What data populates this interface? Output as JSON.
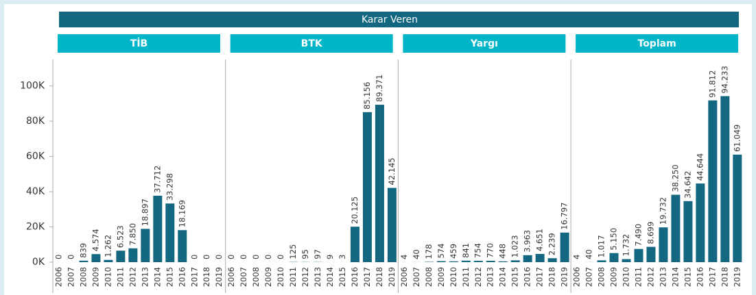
{
  "header": "Karar Veren",
  "chart_data": [
    {
      "type": "bar",
      "title": "TİB",
      "color": "#136780",
      "categories": [
        "2006",
        "2007",
        "2008",
        "2009",
        "2010",
        "2011",
        "2012",
        "2013",
        "2014",
        "2015",
        "2016",
        "2017",
        "2018",
        "2019"
      ],
      "values": [
        0,
        0,
        839,
        4574,
        1262,
        6523,
        7850,
        18897,
        37712,
        33298,
        18169,
        0,
        0,
        0
      ],
      "value_labels": [
        "0",
        "0",
        "839",
        "4.574",
        "1.262",
        "6.523",
        "7.850",
        "18.897",
        "37.712",
        "33.298",
        "18.169",
        "0",
        "0",
        "0"
      ],
      "ylim": [
        0,
        115000
      ],
      "yticks": [
        {
          "value": 0,
          "label": "0K"
        },
        {
          "value": 20000,
          "label": "20K"
        },
        {
          "value": 40000,
          "label": "40K"
        },
        {
          "value": 60000,
          "label": "60K"
        },
        {
          "value": 80000,
          "label": "80K"
        },
        {
          "value": 100000,
          "label": "100K"
        }
      ]
    },
    {
      "type": "bar",
      "title": "BTK",
      "color": "#136780",
      "categories": [
        "2006",
        "2007",
        "2008",
        "2009",
        "2010",
        "2011",
        "2012",
        "2013",
        "2014",
        "2015",
        "2016",
        "2017",
        "2018",
        "2019"
      ],
      "values": [
        0,
        0,
        0,
        0,
        0,
        125,
        95,
        97,
        9,
        3,
        20125,
        85156,
        89371,
        42145
      ],
      "value_labels": [
        "0",
        "0",
        "0",
        "0",
        "0",
        "125",
        "95",
        "97",
        "9",
        "3",
        "20.125",
        "85.156",
        "89.371",
        "42.145"
      ],
      "ylim": [
        0,
        115000
      ]
    },
    {
      "type": "bar",
      "title": "Yargı",
      "color": "#136780",
      "categories": [
        "2006",
        "2007",
        "2008",
        "2009",
        "2010",
        "2011",
        "2012",
        "2013",
        "2014",
        "2015",
        "2016",
        "2017",
        "2018",
        "2019"
      ],
      "values": [
        4,
        40,
        178,
        574,
        459,
        841,
        754,
        770,
        448,
        1023,
        3963,
        4651,
        2239,
        16797
      ],
      "value_labels": [
        "4",
        "40",
        "178",
        "574",
        "459",
        "841",
        "754",
        "770",
        "448",
        "1.023",
        "3.963",
        "4.651",
        "2.239",
        "16.797"
      ],
      "ylim": [
        0,
        115000
      ]
    },
    {
      "type": "bar",
      "title": "Toplam",
      "color": "#136780",
      "categories": [
        "2006",
        "2007",
        "2008",
        "2009",
        "2010",
        "2011",
        "2012",
        "2013",
        "2014",
        "2015",
        "2016",
        "2017",
        "2018",
        "2019"
      ],
      "values": [
        4,
        40,
        1017,
        5150,
        1732,
        7490,
        8699,
        19732,
        38250,
        34642,
        44644,
        91812,
        94233,
        61049
      ],
      "value_labels": [
        "4",
        "40",
        "1.017",
        "5.150",
        "1.732",
        "7.490",
        "8.699",
        "19.732",
        "38.250",
        "34.642",
        "44.644",
        "91.812",
        "94.233",
        "61.049"
      ],
      "ylim": [
        0,
        115000
      ]
    }
  ]
}
